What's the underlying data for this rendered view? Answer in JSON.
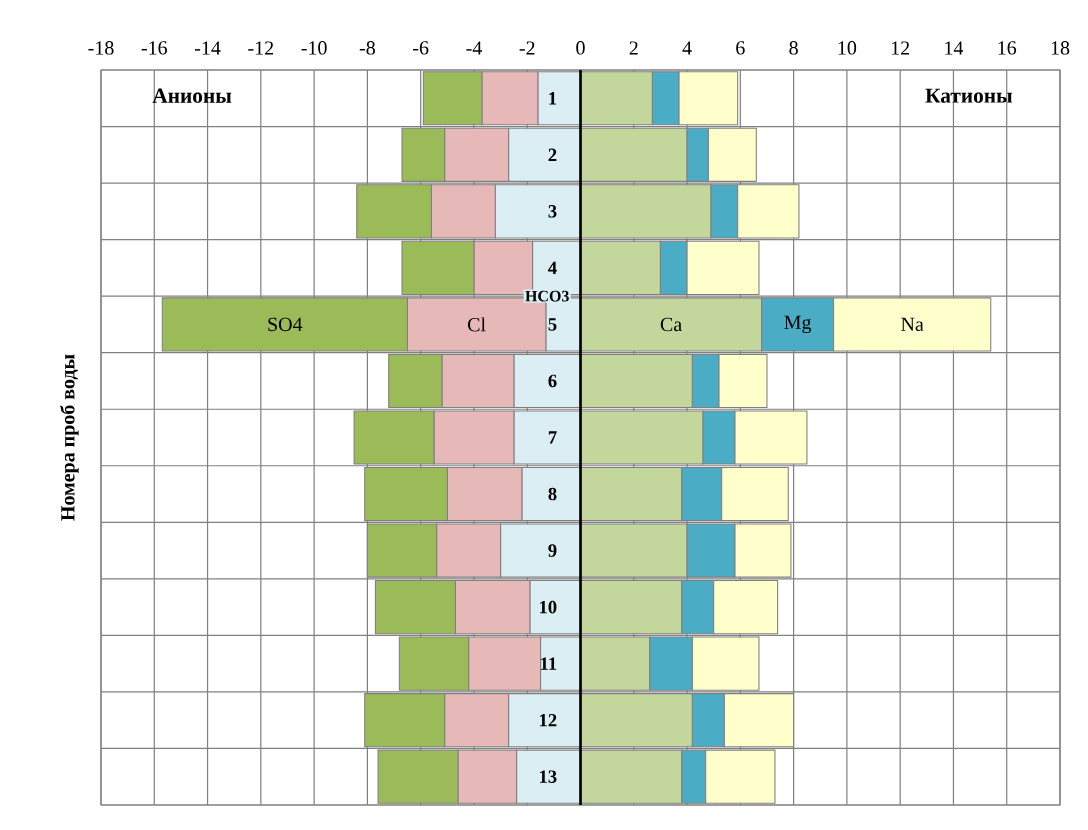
{
  "chart_data": {
    "type": "bar",
    "orientation": "horizontal",
    "stacked": true,
    "ylabel": "Номера проб воды",
    "categories": [
      "1",
      "2",
      "3",
      "4",
      "5",
      "6",
      "7",
      "8",
      "9",
      "10",
      "11",
      "12",
      "13"
    ],
    "series": [
      {
        "name": "HCO3",
        "color": "#dbeef4",
        "values": [
          -1.6,
          -2.7,
          -3.2,
          -1.8,
          -1.3,
          -2.5,
          -2.5,
          -2.2,
          -3.0,
          -1.9,
          -1.5,
          -2.7,
          -2.4
        ]
      },
      {
        "name": "Cl",
        "color": "#e6b9b8",
        "values": [
          -2.1,
          -2.4,
          -2.4,
          -2.2,
          -5.2,
          -2.7,
          -3.0,
          -2.8,
          -2.4,
          -2.8,
          -2.7,
          -2.4,
          -2.2
        ]
      },
      {
        "name": "SO4",
        "color": "#9bbb59",
        "values": [
          -2.2,
          -1.6,
          -2.8,
          -2.7,
          -9.2,
          -2.0,
          -3.0,
          -3.1,
          -2.6,
          -3.0,
          -2.6,
          -3.0,
          -3.0
        ]
      },
      {
        "name": "Ca",
        "color": "#c3d69b",
        "values": [
          2.7,
          4.0,
          4.9,
          3.0,
          6.8,
          4.2,
          4.6,
          3.8,
          4.0,
          3.8,
          2.6,
          4.2,
          3.8
        ]
      },
      {
        "name": "Mg",
        "color": "#4bacc6",
        "values": [
          1.0,
          0.8,
          1.0,
          1.0,
          2.7,
          1.0,
          1.2,
          1.5,
          1.8,
          1.2,
          1.6,
          1.2,
          0.9
        ]
      },
      {
        "name": "Na",
        "color": "#ffffcc",
        "values": [
          2.2,
          1.8,
          2.3,
          2.7,
          5.9,
          1.8,
          2.7,
          2.5,
          2.1,
          2.4,
          2.5,
          2.6,
          2.6
        ]
      }
    ],
    "xlim": [
      -18,
      18
    ],
    "xticks": [
      -18,
      -16,
      -14,
      -12,
      -10,
      -8,
      -6,
      -4,
      -2,
      0,
      2,
      4,
      6,
      8,
      10,
      12,
      14,
      16,
      18
    ],
    "grid": true,
    "annotations": [
      "Анионы",
      "Катионы"
    ]
  }
}
